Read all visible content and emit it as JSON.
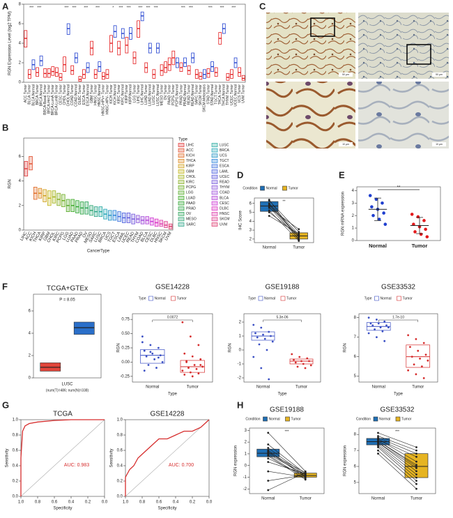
{
  "panel_c": {
    "panel": "C",
    "scale_labels": [
      "50 μm",
      "50 μm",
      "10 μm",
      "10 μm"
    ]
  },
  "chart_data": [
    {
      "type": "box",
      "panel": "A",
      "ylabel": "RGN Expression Level (log2 TPM)",
      "ylim": [
        0,
        8
      ],
      "yticks": [
        0,
        2,
        4,
        6,
        8
      ],
      "categories": [
        "ACC.Tumor",
        "BLCA.Tumor",
        "BLCA.Normal",
        "BRCA.Tumor",
        "BRCA.Normal",
        "BRCA-Basal.Tumor",
        "BRCA-Her2.Tumor",
        "BRCA-LumA.Tumor",
        "BRCA-LumB.Tumor",
        "CESC.Tumor",
        "CHOL.Tumor",
        "CHOL.Normal",
        "COAD.Tumor",
        "COAD.Normal",
        "DLBC.Tumor",
        "ESCA.Tumor",
        "ESCA.Normal",
        "GBM.Tumor",
        "HNSC.Tumor",
        "HNSC.Normal",
        "HNSC-HPV+.Tumor",
        "HNSC-HPV-.Tumor",
        "KICH.Tumor",
        "KICH.Normal",
        "KIRC.Tumor",
        "KIRC.Normal",
        "KIRP.Tumor",
        "KIRP.Normal",
        "LGG.Tumor",
        "LIHC.Tumor",
        "LIHC.Normal",
        "LUAD.Tumor",
        "LUAD.Normal",
        "LUSC.Tumor",
        "LUSC.Normal",
        "MESO.Tumor",
        "OV.Tumor",
        "PAAD.Tumor",
        "PCPG.Tumor",
        "PCPG.Normal",
        "PRAD.Tumor",
        "PRAD.Normal",
        "READ.Tumor",
        "READ.Normal",
        "SARC.Tumor",
        "SKCM.Tumor",
        "SKCM.Metastasis",
        "STAD.Tumor",
        "STAD.Normal",
        "TGCT.Tumor",
        "THCA.Tumor",
        "THCA.Normal",
        "THYM.Tumor",
        "UCEC.Tumor",
        "UCEC.Normal",
        "UCS.Tumor",
        "UVM.Tumor"
      ],
      "q1": [
        3.6,
        0.4,
        1.3,
        0.6,
        1.7,
        0.5,
        0.5,
        0.7,
        0.6,
        0.2,
        1.1,
        4.9,
        0.8,
        2.0,
        0.1,
        0.4,
        1.0,
        2.8,
        0.4,
        1.1,
        0.3,
        0.4,
        3.1,
        4.6,
        2.8,
        4.5,
        3.0,
        4.4,
        1.9,
        4.6,
        6.3,
        1.0,
        3.0,
        0.4,
        3.0,
        0.7,
        1.0,
        1.2,
        1.8,
        1.5,
        1.1,
        1.6,
        0.8,
        2.0,
        0.4,
        0.3,
        0.4,
        0.5,
        1.1,
        0.6,
        3.9,
        5.0,
        0.2,
        0.4,
        1.5,
        0.6,
        0.2
      ],
      "median": [
        4.5,
        0.8,
        1.8,
        1.0,
        2.2,
        0.9,
        0.9,
        1.1,
        1.0,
        0.5,
        1.8,
        5.5,
        1.2,
        2.5,
        0.3,
        0.8,
        1.5,
        3.5,
        0.8,
        1.6,
        0.6,
        0.8,
        4.0,
        5.2,
        3.5,
        5.0,
        3.8,
        5.0,
        2.5,
        5.5,
        6.8,
        1.5,
        3.5,
        0.8,
        3.5,
        1.2,
        1.5,
        1.8,
        2.5,
        2.0,
        1.5,
        2.0,
        1.2,
        2.5,
        0.8,
        0.6,
        0.8,
        0.9,
        1.6,
        1.0,
        4.5,
        5.5,
        0.5,
        0.8,
        2.0,
        1.0,
        0.4
      ],
      "q3": [
        5.3,
        1.3,
        2.3,
        1.5,
        2.7,
        1.4,
        1.4,
        1.6,
        1.5,
        0.9,
        2.6,
        6.0,
        1.7,
        3.0,
        0.6,
        1.3,
        2.0,
        4.2,
        1.3,
        2.1,
        1.0,
        1.3,
        4.8,
        5.8,
        4.2,
        5.5,
        4.6,
        5.6,
        3.1,
        6.3,
        7.2,
        2.0,
        4.0,
        1.3,
        4.0,
        1.8,
        2.1,
        2.5,
        3.2,
        2.5,
        2.0,
        2.5,
        1.7,
        3.0,
        1.3,
        1.0,
        1.3,
        1.4,
        2.1,
        1.5,
        5.1,
        6.0,
        0.9,
        1.3,
        2.5,
        1.5,
        0.7
      ],
      "colors": [
        "#e41a1c",
        "#e41a1c",
        "#1f3fcf",
        "#e41a1c",
        "#1f3fcf",
        "#e41a1c",
        "#e41a1c",
        "#e41a1c",
        "#e41a1c",
        "#e41a1c",
        "#e41a1c",
        "#1f3fcf",
        "#e41a1c",
        "#1f3fcf",
        "#e41a1c",
        "#e41a1c",
        "#1f3fcf",
        "#e41a1c",
        "#e41a1c",
        "#1f3fcf",
        "#e41a1c",
        "#e41a1c",
        "#e41a1c",
        "#1f3fcf",
        "#e41a1c",
        "#1f3fcf",
        "#e41a1c",
        "#1f3fcf",
        "#e41a1c",
        "#e41a1c",
        "#1f3fcf",
        "#e41a1c",
        "#1f3fcf",
        "#e41a1c",
        "#1f3fcf",
        "#e41a1c",
        "#e41a1c",
        "#e41a1c",
        "#e41a1c",
        "#1f3fcf",
        "#e41a1c",
        "#1f3fcf",
        "#e41a1c",
        "#1f3fcf",
        "#e41a1c",
        "#e41a1c",
        "#1f3fcf",
        "#e41a1c",
        "#1f3fcf",
        "#e41a1c",
        "#e41a1c",
        "#1f3fcf",
        "#e41a1c",
        "#e41a1c",
        "#1f3fcf",
        "#e41a1c",
        "#e41a1c"
      ],
      "significance": [
        null,
        "***",
        null,
        "***",
        null,
        null,
        null,
        null,
        null,
        null,
        "***",
        null,
        "***",
        null,
        null,
        "***",
        null,
        null,
        "***",
        null,
        null,
        null,
        "*",
        null,
        "***",
        null,
        "***",
        null,
        null,
        "***",
        null,
        "***",
        null,
        "***",
        null,
        null,
        null,
        null,
        null,
        null,
        "***",
        null,
        "***",
        null,
        null,
        null,
        null,
        "***",
        null,
        null,
        "***",
        null,
        null,
        "***",
        null,
        null,
        null
      ]
    },
    {
      "type": "box",
      "panel": "B",
      "ylabel": "RGN",
      "xlabel": "CancerType",
      "legend_title": "Type",
      "ylim": [
        0,
        7.5
      ],
      "yticks": [
        0,
        2,
        4,
        6
      ],
      "categories": [
        "LIHC",
        "ACC",
        "KICH",
        "THCA",
        "KIRP",
        "GBM",
        "CHOL",
        "KIRC",
        "PCPG",
        "LGG",
        "LUAD",
        "PAAD",
        "PRAD",
        "OV",
        "MESO",
        "SARC",
        "LUSC",
        "BRCA",
        "UCS",
        "TGCT",
        "ESCA",
        "LAML",
        "UCEC",
        "READ",
        "THYM",
        "COAD",
        "BLCA",
        "CESC",
        "DLBC",
        "HNSC",
        "SKCM",
        "UVM"
      ],
      "q1": [
        4.4,
        4.9,
        2.5,
        2.6,
        2.3,
        2.0,
        2.2,
        2.0,
        1.9,
        1.5,
        1.5,
        1.4,
        1.3,
        1.3,
        1.2,
        1.1,
        1.1,
        0.9,
        0.8,
        0.8,
        0.7,
        0.6,
        0.6,
        0.5,
        0.6,
        0.5,
        0.5,
        0.4,
        0.3,
        0.3,
        0.2,
        0.1
      ],
      "median": [
        5.0,
        5.4,
        3.0,
        3.0,
        2.8,
        2.6,
        2.7,
        2.5,
        2.4,
        2.0,
        2.0,
        1.9,
        1.8,
        1.8,
        1.6,
        1.5,
        1.5,
        1.3,
        1.2,
        1.2,
        1.1,
        1.0,
        1.0,
        0.9,
        0.9,
        0.8,
        0.8,
        0.7,
        0.6,
        0.5,
        0.4,
        0.3
      ],
      "q3": [
        5.6,
        6.0,
        3.5,
        3.4,
        3.3,
        3.2,
        3.2,
        3.0,
        2.9,
        2.5,
        2.5,
        2.4,
        2.3,
        2.3,
        2.0,
        1.9,
        1.9,
        1.7,
        1.6,
        1.6,
        1.5,
        1.4,
        1.4,
        1.3,
        1.2,
        1.1,
        1.1,
        1.0,
        0.9,
        0.8,
        0.7,
        0.5
      ],
      "colors": [
        "hsl(0,75%,55%)",
        "hsl(11,75%,52%)",
        "hsl(22,75%,50%)",
        "hsl(33,80%,48%)",
        "hsl(44,80%,45%)",
        "hsl(55,80%,42%)",
        "hsl(66,75%,40%)",
        "hsl(77,70%,40%)",
        "hsl(88,70%,40%)",
        "hsl(99,65%,40%)",
        "hsl(110,65%,40%)",
        "hsl(121,60%,40%)",
        "hsl(132,60%,40%)",
        "hsl(143,60%,40%)",
        "hsl(154,60%,40%)",
        "hsl(165,60%,40%)",
        "hsl(176,65%,40%)",
        "hsl(187,70%,42%)",
        "hsl(198,70%,45%)",
        "hsl(209,70%,50%)",
        "hsl(220,70%,55%)",
        "hsl(231,70%,58%)",
        "hsl(242,65%,60%)",
        "hsl(253,65%,60%)",
        "hsl(264,65%,60%)",
        "hsl(275,65%,58%)",
        "hsl(286,65%,55%)",
        "hsl(297,65%,52%)",
        "hsl(308,70%,52%)",
        "hsl(319,70%,55%)",
        "hsl(330,70%,55%)",
        "hsl(341,70%,55%)"
      ]
    },
    {
      "type": "group",
      "panel": "D",
      "ylabel": "IHC Score",
      "legend_title": "Condition",
      "paired": true,
      "filled": true,
      "p_label": "**",
      "ylim": [
        1.6,
        6.6
      ],
      "yticks": [
        2,
        3,
        4,
        5,
        6
      ],
      "series": [
        {
          "name": "Normal",
          "color": "#1f6fb5",
          "q1": 5.1,
          "median": 5.7,
          "q3": 6.2,
          "values": [
            6.3,
            6.0,
            5.8,
            5.6,
            5.5,
            5.2,
            5.0,
            4.6,
            6.4,
            5.9
          ]
        },
        {
          "name": "Tumor",
          "color": "#e6b422",
          "q1": 2.0,
          "median": 2.35,
          "q3": 2.7,
          "values": [
            2.8,
            2.5,
            2.2,
            2.0,
            3.1,
            1.8,
            2.4,
            2.6,
            1.9,
            2.3
          ]
        }
      ]
    },
    {
      "type": "dot",
      "panel": "E",
      "ylabel": "RGN mRNA expression",
      "p_label": "**",
      "ylim": [
        0,
        4.3
      ],
      "yticks": [
        0,
        1,
        2,
        3,
        4
      ],
      "series": [
        {
          "name": "Normal",
          "color": "#1f3fcf",
          "mean": 2.5,
          "sd": 0.9,
          "values": [
            3.6,
            3.3,
            3.0,
            2.7,
            2.5,
            2.2,
            2.0,
            1.7,
            1.3
          ]
        },
        {
          "name": "Tumor",
          "color": "#e41a1c",
          "mean": 1.2,
          "sd": 0.65,
          "values": [
            2.1,
            1.9,
            1.6,
            1.3,
            1.1,
            0.9,
            0.7,
            0.5,
            0.3
          ]
        }
      ]
    },
    {
      "type": "box_pair",
      "panel": "F",
      "title": "TCGA+GTEx",
      "xlabel": "LUSC",
      "subtitle": "(num(T)=486; num(N)=338)",
      "p_label": "P = 8.05",
      "ylim": [
        0,
        7.5
      ],
      "yticks": [
        0,
        2,
        4,
        6
      ],
      "boxes": [
        {
          "color": "#e0453a",
          "q1": 0.6,
          "median": 0.95,
          "q3": 1.35
        },
        {
          "color": "#2a6fc9",
          "q1": 3.9,
          "median": 4.5,
          "q3": 5.0
        }
      ]
    },
    {
      "type": "group",
      "title": "GSE14228",
      "ylabel": "RGN",
      "xlabel": "Type",
      "legend_title": "Type",
      "p_label": "0.0072",
      "ylim": [
        -0.35,
        0.85
      ],
      "yticks": [
        -0.25,
        {
          "value": 0,
          "label": "0.00"
        },
        0.25,
        {
          "value": 0.5,
          "label": "0.50"
        },
        0.75
      ],
      "series": [
        {
          "name": "Normal",
          "color": "#3a4fc4",
          "q1": -0.02,
          "median": 0.12,
          "q3": 0.22,
          "values": [
            0.45,
            0.3,
            0.25,
            0.2,
            0.15,
            0.12,
            0.1,
            0.05,
            0.0,
            -0.05,
            -0.1,
            0.35,
            0.18,
            0.08,
            -0.15
          ]
        },
        {
          "name": "Tumor",
          "color": "#d62d2d",
          "q1": -0.18,
          "median": -0.08,
          "q3": 0.03,
          "values": [
            0.7,
            0.45,
            0.3,
            0.15,
            0.1,
            0.05,
            0.0,
            -0.05,
            -0.08,
            -0.1,
            -0.12,
            -0.15,
            -0.18,
            -0.2,
            -0.22,
            -0.25,
            -0.05,
            0.02
          ]
        }
      ]
    },
    {
      "type": "group",
      "title": "GSE19188",
      "ylabel": "RGN",
      "xlabel": "Type",
      "legend_title": "Type",
      "p_label": "5.3e-06",
      "ylim": [
        -2.3,
        2.6
      ],
      "yticks": [
        -2,
        -1,
        0,
        1,
        2
      ],
      "series": [
        {
          "name": "Normal",
          "color": "#3a4fc4",
          "q1": 0.7,
          "median": 1.0,
          "q3": 1.3,
          "values": [
            1.8,
            1.6,
            1.3,
            1.2,
            1.1,
            1.0,
            0.9,
            0.8,
            0.6,
            0.4,
            0.0,
            -0.5,
            -1.3,
            -2.1
          ]
        },
        {
          "name": "Tumor",
          "color": "#d62d2d",
          "q1": -1.0,
          "median": -0.8,
          "q3": -0.65,
          "values": [
            -0.3,
            -0.5,
            -0.6,
            -0.7,
            -0.8,
            -0.8,
            -0.9,
            -1.0,
            -1.1,
            -1.2,
            -1.3
          ]
        }
      ]
    },
    {
      "type": "group",
      "title": "GSE33532",
      "ylabel": "RGN",
      "xlabel": "Type",
      "legend_title": "Type",
      "p_label": "1.7e-10",
      "ylim": [
        4.7,
        8.2
      ],
      "yticks": [
        5,
        6,
        7,
        8
      ],
      "series": [
        {
          "name": "Normal",
          "color": "#3a4fc4",
          "q1": 7.35,
          "median": 7.55,
          "q3": 7.75,
          "values": [
            8.0,
            7.9,
            7.8,
            7.7,
            7.7,
            7.6,
            7.6,
            7.5,
            7.5,
            7.4,
            7.3,
            7.2,
            7.0,
            6.8
          ]
        },
        {
          "name": "Tumor",
          "color": "#d62d2d",
          "q1": 5.45,
          "median": 6.0,
          "q3": 6.6,
          "values": [
            7.1,
            6.9,
            6.7,
            6.5,
            6.3,
            6.1,
            6.0,
            5.9,
            5.8,
            5.6,
            5.5,
            5.3,
            5.1,
            4.9
          ]
        }
      ]
    },
    {
      "type": "roc",
      "panel": "G",
      "title": "TCGA",
      "xlabel": "Specificity",
      "ylabel": "Sensitivity",
      "auc_label": "AUC: 0.983",
      "color": "#d62d2d",
      "xlim": [
        1,
        0
      ],
      "ylim": [
        0,
        1
      ],
      "xticks": [
        {
          "value": 1,
          "label": "1.0"
        },
        0.8,
        0.6,
        0.4,
        0.2,
        {
          "value": 0,
          "label": "0.0"
        }
      ],
      "yticks": [
        {
          "value": 0,
          "label": "0.0"
        },
        0.2,
        0.4,
        0.6,
        0.8,
        {
          "value": 1,
          "label": "1.0"
        }
      ],
      "x": [
        1,
        1,
        0.98,
        0.95,
        0.9,
        0.8,
        0.6,
        0.4,
        0.2,
        0
      ],
      "y": [
        0,
        0.5,
        0.85,
        0.92,
        0.95,
        0.97,
        0.99,
        1,
        1,
        1
      ]
    },
    {
      "type": "roc",
      "title": "GSE14228",
      "xlabel": "Specificity",
      "ylabel": "Sensitivity",
      "auc_label": "AUC: 0.700",
      "color": "#d62d2d",
      "xlim": [
        1,
        0
      ],
      "ylim": [
        0,
        1
      ],
      "xticks": [
        {
          "value": 1,
          "label": "1.0"
        },
        0.8,
        0.6,
        0.4,
        0.2,
        {
          "value": 0,
          "label": "0.0"
        }
      ],
      "yticks": [
        {
          "value": 0,
          "label": "0.0"
        },
        0.2,
        0.4,
        0.6,
        0.8,
        {
          "value": 1,
          "label": "1.0"
        }
      ],
      "x": [
        1,
        1,
        0.95,
        0.9,
        0.85,
        0.8,
        0.75,
        0.7,
        0.65,
        0.6,
        0.5,
        0.4,
        0.3,
        0.2,
        0.1,
        0.05,
        0
      ],
      "y": [
        0,
        0.25,
        0.35,
        0.4,
        0.5,
        0.55,
        0.6,
        0.65,
        0.7,
        0.75,
        0.75,
        0.8,
        0.85,
        0.85,
        0.9,
        0.95,
        1
      ]
    },
    {
      "type": "group",
      "panel": "H",
      "title": "GSE19188",
      "ylabel": "RGN expression",
      "legend_title": "Condition",
      "paired": true,
      "filled": true,
      "p_label": "***",
      "ylim": [
        -2.4,
        3.2
      ],
      "yticks": [
        -2,
        -1,
        0,
        1,
        2,
        3
      ],
      "series": [
        {
          "name": "Normal",
          "color": "#1f6fb5",
          "q1": 0.75,
          "median": 1.05,
          "q3": 1.4,
          "values": [
            2.8,
            1.8,
            1.5,
            1.3,
            1.2,
            1.1,
            1.0,
            0.9,
            0.8,
            0.6,
            0.3,
            -0.5,
            -1.3,
            -2.1
          ]
        },
        {
          "name": "Tumor",
          "color": "#e6b422",
          "q1": -1.0,
          "median": -0.85,
          "q3": -0.65,
          "values": [
            -0.5,
            -0.7,
            -0.8,
            -0.9,
            -1.0,
            -0.6,
            -0.8,
            -1.1,
            -1.2,
            -0.9,
            -0.7,
            -1.0,
            -0.8,
            -0.6
          ]
        }
      ]
    },
    {
      "type": "group",
      "title": "GSE33532",
      "ylabel": "RGN expression",
      "legend_title": "Condition",
      "paired": true,
      "filled": true,
      "p_label": "***",
      "ylim": [
        4.3,
        8.4
      ],
      "yticks": [
        5,
        6,
        7,
        8
      ],
      "series": [
        {
          "name": "Normal",
          "color": "#1f6fb5",
          "q1": 7.35,
          "median": 7.55,
          "q3": 7.75,
          "values": [
            8.1,
            7.9,
            7.8,
            7.7,
            7.7,
            7.6,
            7.6,
            7.5,
            7.5,
            7.4,
            7.3,
            7.2,
            7.0,
            6.8
          ]
        },
        {
          "name": "Tumor",
          "color": "#e6b422",
          "q1": 5.3,
          "median": 6.0,
          "q3": 6.8,
          "values": [
            7.2,
            7.0,
            6.8,
            6.6,
            6.3,
            6.1,
            6.0,
            5.9,
            5.7,
            5.5,
            5.3,
            5.1,
            4.9,
            4.6
          ]
        }
      ]
    }
  ]
}
